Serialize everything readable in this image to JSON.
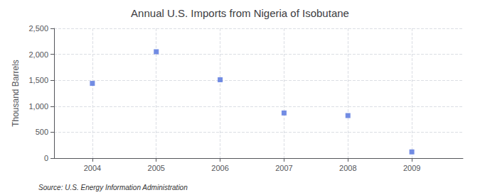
{
  "chart_data": {
    "type": "scatter",
    "title": "Annual U.S. Imports from Nigeria of Isobutane",
    "ylabel": "Thousand Barrels",
    "source": "Source: U.S. Energy Information Administration",
    "x": [
      2004,
      2005,
      2006,
      2007,
      2008,
      2009
    ],
    "values": [
      1440,
      2050,
      1510,
      870,
      820,
      120
    ],
    "xlim": [
      2003.4,
      2009.8
    ],
    "xticks": [
      2004,
      2005,
      2006,
      2007,
      2008,
      2009
    ],
    "ylim": [
      0,
      2500
    ],
    "yticks": [
      0,
      500,
      {
        "value": 1000,
        "label": "1,000"
      },
      {
        "value": 1500,
        "label": "1,500"
      },
      {
        "value": 2000,
        "label": "2,000"
      },
      {
        "value": 2500,
        "label": "2,500"
      }
    ],
    "marker": "square",
    "grid": true
  }
}
